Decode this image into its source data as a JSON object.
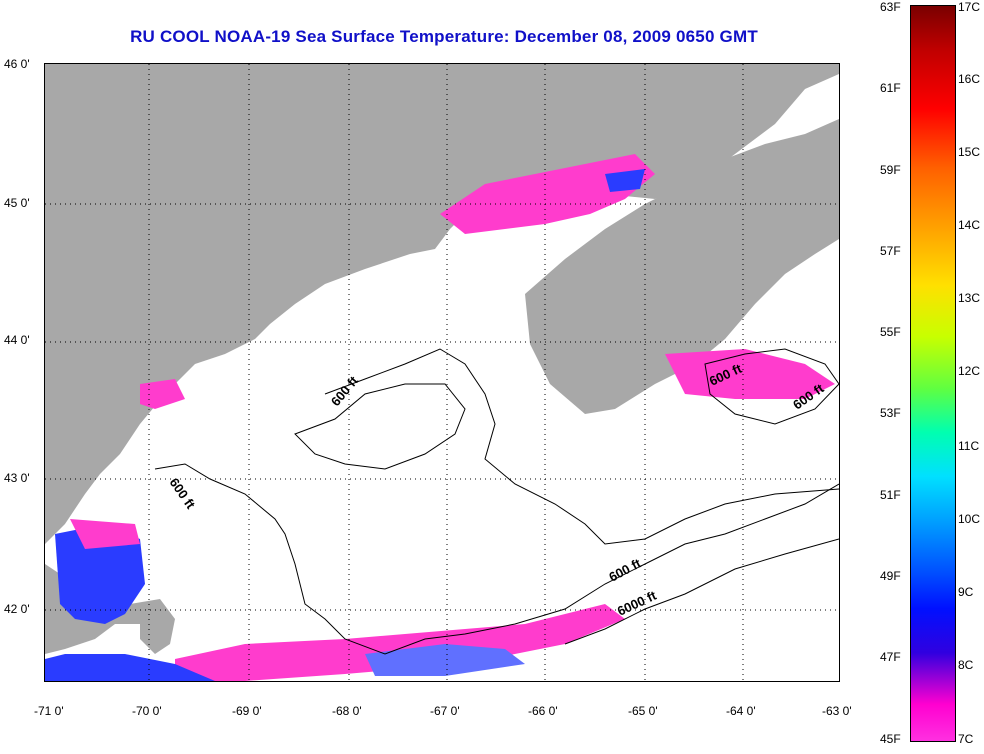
{
  "title": "RU COOL  NOAA-19  Sea Surface Temperature:  December 08, 2009 0650 GMT",
  "lat_labels": [
    "46 0'",
    "45 0'",
    "44 0'",
    "43 0'",
    "42 0'"
  ],
  "lon_labels": [
    "-71 0'",
    "-70 0'",
    "-69 0'",
    "-68 0'",
    "-67 0'",
    "-66 0'",
    "-65 0'",
    "-64 0'",
    "-63 0'"
  ],
  "contour_labels": [
    "600 ft",
    "600 ft",
    "600 ft",
    "600 ft",
    "6000 ft",
    "600 ft"
  ],
  "colorbar": {
    "f_labels": [
      "63F",
      "61F",
      "59F",
      "57F",
      "55F",
      "53F",
      "51F",
      "49F",
      "47F",
      "45F"
    ],
    "c_labels": [
      "17C",
      "16C",
      "15C",
      "14C",
      "13C",
      "12C",
      "11C",
      "10C",
      "9C",
      "8C",
      "7C"
    ]
  },
  "colors": {
    "land": "#a8a8a8",
    "cloud": "#ffffff",
    "cold_magenta": "#ff3ccd",
    "cool_blue": "#2a3cff",
    "title_blue": "#1010c8"
  }
}
